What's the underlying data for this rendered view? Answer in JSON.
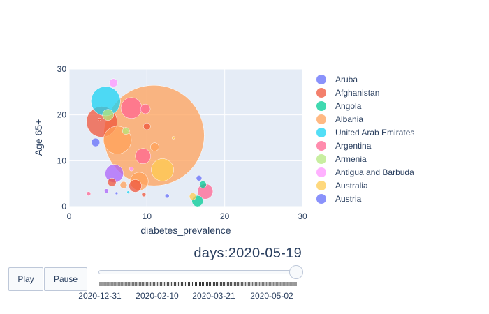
{
  "chart_data": {
    "type": "scatter",
    "title": "",
    "xlabel": "diabetes_prevalence",
    "ylabel": "Age 65+",
    "xlim": [
      0,
      30
    ],
    "ylim": [
      0,
      30
    ],
    "x_ticks": [
      "0",
      "10",
      "20",
      "30"
    ],
    "y_ticks": [
      "0",
      "10",
      "20",
      "30"
    ],
    "grid": true,
    "legend_position": "right",
    "legend": [
      {
        "name": "Aruba",
        "color": "#636efa"
      },
      {
        "name": "Afghanistan",
        "color": "#EF553B"
      },
      {
        "name": "Angola",
        "color": "#00cc96"
      },
      {
        "name": "Albania",
        "color": "#FFA15A"
      },
      {
        "name": "United Arab Emirates",
        "color": "#19d3f3"
      },
      {
        "name": "Argentina",
        "color": "#FF6692"
      },
      {
        "name": "Armenia",
        "color": "#B6E880"
      },
      {
        "name": "Antigua and Barbuda",
        "color": "#FF97FF"
      },
      {
        "name": "Australia",
        "color": "#FECB52"
      },
      {
        "name": "Austria",
        "color": "#636efa"
      }
    ],
    "points": [
      {
        "x": 10.9,
        "y": 15.5,
        "r": 72,
        "c": "#FFA15A"
      },
      {
        "x": 4.2,
        "y": 18.5,
        "r": 22,
        "c": "#EF553B"
      },
      {
        "x": 4.7,
        "y": 23.0,
        "r": 21,
        "c": "#19d3f3"
      },
      {
        "x": 6.2,
        "y": 14.5,
        "r": 20,
        "c": "#FFA15A"
      },
      {
        "x": 8.0,
        "y": 21.5,
        "r": 15,
        "c": "#FF6692"
      },
      {
        "x": 5.8,
        "y": 7.2,
        "r": 13,
        "c": "#AB63FA"
      },
      {
        "x": 9.0,
        "y": 5.5,
        "r": 13,
        "c": "#FFA15A"
      },
      {
        "x": 12.0,
        "y": 8.0,
        "r": 16,
        "c": "#FECB52"
      },
      {
        "x": 9.5,
        "y": 11.0,
        "r": 11,
        "c": "#FF6692"
      },
      {
        "x": 17.5,
        "y": 3.3,
        "r": 11,
        "c": "#FF6692"
      },
      {
        "x": 8.5,
        "y": 4.5,
        "r": 9,
        "c": "#EF553B"
      },
      {
        "x": 5.0,
        "y": 20.0,
        "r": 8,
        "c": "#B6E880"
      },
      {
        "x": 5.7,
        "y": 27.0,
        "r": 6,
        "c": "#FF97FF"
      },
      {
        "x": 3.4,
        "y": 14.0,
        "r": 6,
        "c": "#636efa"
      },
      {
        "x": 16.5,
        "y": 1.2,
        "r": 8,
        "c": "#00cc96"
      },
      {
        "x": 15.9,
        "y": 2.2,
        "r": 5,
        "c": "#FECB52"
      },
      {
        "x": 17.2,
        "y": 4.8,
        "r": 5,
        "c": "#00cc96"
      },
      {
        "x": 16.7,
        "y": 6.2,
        "r": 4,
        "c": "#636efa"
      },
      {
        "x": 7.3,
        "y": 16.5,
        "r": 5,
        "c": "#B6E880"
      },
      {
        "x": 9.8,
        "y": 21.3,
        "r": 7,
        "c": "#FF6692"
      },
      {
        "x": 10.0,
        "y": 17.5,
        "r": 5,
        "c": "#EF553B"
      },
      {
        "x": 11.0,
        "y": 13.0,
        "r": 6,
        "c": "#FFA15A"
      },
      {
        "x": 5.5,
        "y": 5.3,
        "r": 6,
        "c": "#EF553B"
      },
      {
        "x": 7.0,
        "y": 4.7,
        "r": 5,
        "c": "#FFA15A"
      },
      {
        "x": 4.8,
        "y": 3.4,
        "r": 3,
        "c": "#AB63FA"
      },
      {
        "x": 2.5,
        "y": 2.8,
        "r": 3,
        "c": "#FF6692"
      },
      {
        "x": 6.1,
        "y": 2.9,
        "r": 2,
        "c": "#636efa"
      },
      {
        "x": 12.6,
        "y": 2.3,
        "r": 3,
        "c": "#636efa"
      },
      {
        "x": 9.6,
        "y": 2.6,
        "r": 3,
        "c": "#EF553B"
      },
      {
        "x": 7.6,
        "y": 3.1,
        "r": 2,
        "c": "#19d3f3"
      },
      {
        "x": 8.0,
        "y": 8.2,
        "r": 3,
        "c": "#FF97FF"
      },
      {
        "x": 13.4,
        "y": 15.0,
        "r": 2,
        "c": "#FECB52"
      },
      {
        "x": 3.9,
        "y": 19.0,
        "r": 2,
        "c": "#EF553B"
      }
    ]
  },
  "controls": {
    "play_label": "Play",
    "pause_label": "Pause"
  },
  "slider": {
    "prefix": "days:",
    "current_value": "2020-05-19",
    "value_fraction": 1.0,
    "tick_labels": [
      "2020-12-31",
      "2020-02-10",
      "2020-03-21",
      "2020-05-02"
    ]
  }
}
